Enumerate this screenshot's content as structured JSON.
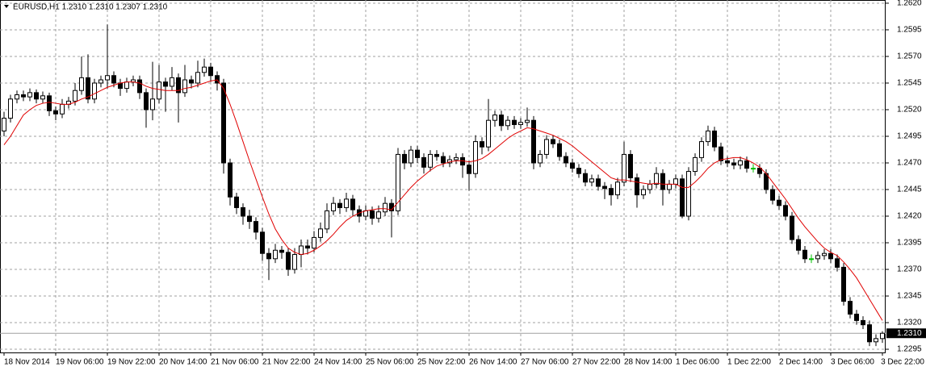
{
  "chart_data": {
    "type": "candlestick",
    "header": "EURUSD,H1  1.2310 1.2310 1.2307 1.2310",
    "ylim": [
      1.2292,
      1.2623
    ],
    "yticks": [
      {
        "value": 1.262,
        "label": "1.2620"
      },
      1.2595,
      {
        "value": 1.257,
        "label": "1.2570"
      },
      1.2545,
      {
        "value": 1.252,
        "label": "1.2520"
      },
      1.2495,
      {
        "value": 1.247,
        "label": "1.2470"
      },
      1.2445,
      {
        "value": 1.242,
        "label": "1.2420"
      },
      1.2395,
      {
        "value": 1.237,
        "label": "1.2370"
      },
      1.2345,
      {
        "value": 1.232,
        "label": "1.2320"
      },
      1.2295
    ],
    "grid": true,
    "last_price": {
      "value": 1.231,
      "label": "1.2310"
    },
    "colors": {
      "bull": "#ffffff",
      "bear": "#000000",
      "outline": "#000000",
      "doji": "#00c000",
      "ma": "#e00000",
      "last_price": "#a0a0a0"
    },
    "categories": [
      "18 Nov 2014",
      null,
      null,
      null,
      null,
      null,
      null,
      null,
      "19 Nov 06:00",
      null,
      null,
      null,
      null,
      null,
      null,
      null,
      "19 Nov 22:00",
      null,
      null,
      null,
      null,
      null,
      null,
      null,
      "20 Nov 14:00",
      null,
      null,
      null,
      null,
      null,
      null,
      null,
      "21 Nov 06:00",
      null,
      null,
      null,
      null,
      null,
      null,
      null,
      "21 Nov 22:00",
      null,
      null,
      null,
      null,
      null,
      null,
      null,
      "24 Nov 14:00",
      null,
      null,
      null,
      null,
      null,
      null,
      null,
      "25 Nov 06:00",
      null,
      null,
      null,
      null,
      null,
      null,
      null,
      "25 Nov 22:00",
      null,
      null,
      null,
      null,
      null,
      null,
      null,
      "26 Nov 14:00",
      null,
      null,
      null,
      null,
      null,
      null,
      null,
      "27 Nov 06:00",
      null,
      null,
      null,
      null,
      null,
      null,
      null,
      "27 Nov 22:00",
      null,
      null,
      null,
      null,
      null,
      null,
      null,
      "28 Nov 14:00",
      null,
      null,
      null,
      null,
      null,
      null,
      null,
      "1 Dec 06:00",
      null,
      null,
      null,
      null,
      null,
      null,
      null,
      "1 Dec 22:00",
      null,
      null,
      null,
      null,
      null,
      null,
      null,
      "2 Dec 14:00",
      null,
      null,
      null,
      null,
      null,
      null,
      null,
      "3 Dec 06:00",
      null,
      null,
      null,
      null,
      null,
      null,
      null,
      "3 Dec 22:00"
    ],
    "ohlc": [
      [
        1.25,
        1.2518,
        1.2495,
        1.2512
      ],
      [
        1.2512,
        1.2534,
        1.2508,
        1.253
      ],
      [
        1.253,
        1.2538,
        1.2526,
        1.2534
      ],
      [
        1.2534,
        1.2538,
        1.2528,
        1.2532
      ],
      [
        1.2532,
        1.254,
        1.2528,
        1.2536
      ],
      [
        1.2536,
        1.2539,
        1.2526,
        1.253
      ],
      [
        1.253,
        1.2537,
        1.2526,
        1.2533
      ],
      [
        1.2533,
        1.2536,
        1.2514,
        1.2519
      ],
      [
        1.2519,
        1.2523,
        1.251,
        1.2516
      ],
      [
        1.2516,
        1.253,
        1.2512,
        1.2525
      ],
      [
        1.2525,
        1.2532,
        1.2521,
        1.2528
      ],
      [
        1.2528,
        1.2545,
        1.2524,
        1.2538
      ],
      [
        1.2538,
        1.257,
        1.2534,
        1.255
      ],
      [
        1.255,
        1.2572,
        1.2526,
        1.253
      ],
      [
        1.253,
        1.2549,
        1.2526,
        1.2545
      ],
      [
        1.2545,
        1.2552,
        1.2541,
        1.2548
      ],
      [
        1.2548,
        1.26,
        1.254,
        1.2552
      ],
      [
        1.2552,
        1.2556,
        1.2541,
        1.2545
      ],
      [
        1.2545,
        1.2549,
        1.2533,
        1.254
      ],
      [
        1.254,
        1.255,
        1.2536,
        1.2546
      ],
      [
        1.2546,
        1.2552,
        1.2542,
        1.2548
      ],
      [
        1.2548,
        1.2552,
        1.253,
        1.2536
      ],
      [
        1.2536,
        1.254,
        1.2503,
        1.252
      ],
      [
        1.252,
        1.2565,
        1.251,
        1.253
      ],
      [
        1.253,
        1.2562,
        1.2526,
        1.2546
      ],
      [
        1.2546,
        1.255,
        1.2518,
        1.2542
      ],
      [
        1.2542,
        1.256,
        1.2538,
        1.255
      ],
      [
        1.255,
        1.2554,
        1.2508,
        1.2536
      ],
      [
        1.2536,
        1.2562,
        1.2532,
        1.2548
      ],
      [
        1.2548,
        1.2552,
        1.254,
        1.2545
      ],
      [
        1.2545,
        1.2566,
        1.2541,
        1.2555
      ],
      [
        1.2555,
        1.2568,
        1.2551,
        1.256
      ],
      [
        1.256,
        1.2564,
        1.2546,
        1.2552
      ],
      [
        1.2552,
        1.2556,
        1.2538,
        1.2545
      ],
      [
        1.2545,
        1.2549,
        1.246,
        1.247
      ],
      [
        1.247,
        1.2474,
        1.243,
        1.2438
      ],
      [
        1.2438,
        1.2442,
        1.2422,
        1.2428
      ],
      [
        1.2428,
        1.2432,
        1.2412,
        1.242
      ],
      [
        1.242,
        1.2426,
        1.2408,
        1.2415
      ],
      [
        1.2415,
        1.2419,
        1.2398,
        1.2405
      ],
      [
        1.2405,
        1.2409,
        1.2378,
        1.2385
      ],
      [
        1.2385,
        1.239,
        1.236,
        1.238
      ],
      [
        1.238,
        1.2394,
        1.2376,
        1.2388
      ],
      [
        1.2388,
        1.2392,
        1.238,
        1.2386
      ],
      [
        1.2386,
        1.239,
        1.2364,
        1.237
      ],
      [
        1.237,
        1.239,
        1.2366,
        1.2384
      ],
      [
        1.2384,
        1.2398,
        1.2372,
        1.2392
      ],
      [
        1.2392,
        1.2398,
        1.2384,
        1.239
      ],
      [
        1.239,
        1.2406,
        1.2386,
        1.24
      ],
      [
        1.24,
        1.2414,
        1.2396,
        1.2408
      ],
      [
        1.2408,
        1.2432,
        1.2404,
        1.2425
      ],
      [
        1.2425,
        1.2438,
        1.2421,
        1.2432
      ],
      [
        1.2432,
        1.2436,
        1.2422,
        1.2428
      ],
      [
        1.2428,
        1.2442,
        1.2424,
        1.2436
      ],
      [
        1.2436,
        1.244,
        1.242,
        1.2426
      ],
      [
        1.2426,
        1.243,
        1.2414,
        1.242
      ],
      [
        1.242,
        1.243,
        1.2416,
        1.2425
      ],
      [
        1.2425,
        1.2429,
        1.2412,
        1.2418
      ],
      [
        1.2418,
        1.243,
        1.2414,
        1.2424
      ],
      [
        1.2424,
        1.2438,
        1.242,
        1.2432
      ],
      [
        1.2432,
        1.2436,
        1.24,
        1.2425
      ],
      [
        1.2425,
        1.2484,
        1.2421,
        1.2478
      ],
      [
        1.2478,
        1.2482,
        1.2464,
        1.247
      ],
      [
        1.247,
        1.2486,
        1.2466,
        1.2482
      ],
      [
        1.2482,
        1.2486,
        1.247,
        1.2475
      ],
      [
        1.2475,
        1.2479,
        1.246,
        1.2466
      ],
      [
        1.2466,
        1.2482,
        1.2462,
        1.2478
      ],
      [
        1.2478,
        1.2482,
        1.2472,
        1.2476
      ],
      [
        1.2476,
        1.248,
        1.2466,
        1.247
      ],
      [
        1.247,
        1.2477,
        1.2466,
        1.2473
      ],
      [
        1.2473,
        1.2479,
        1.2469,
        1.2475
      ],
      [
        1.2475,
        1.2479,
        1.2456,
        1.2468
      ],
      [
        1.2468,
        1.2472,
        1.2444,
        1.246
      ],
      [
        1.246,
        1.2496,
        1.2456,
        1.249
      ],
      [
        1.249,
        1.2494,
        1.2478,
        1.2485
      ],
      [
        1.2485,
        1.253,
        1.2481,
        1.251
      ],
      [
        1.251,
        1.2519,
        1.2504,
        1.2515
      ],
      [
        1.2515,
        1.2519,
        1.25,
        1.2505
      ],
      [
        1.2505,
        1.2514,
        1.2501,
        1.251
      ],
      [
        1.251,
        1.2514,
        1.2502,
        1.2506
      ],
      [
        1.2506,
        1.2512,
        1.2502,
        1.2508
      ],
      [
        1.2508,
        1.2522,
        1.2504,
        1.251
      ],
      [
        1.251,
        1.2514,
        1.2464,
        1.247
      ],
      [
        1.247,
        1.2482,
        1.2466,
        1.2478
      ],
      [
        1.2478,
        1.2496,
        1.2474,
        1.2492
      ],
      [
        1.2492,
        1.2496,
        1.2484,
        1.2488
      ],
      [
        1.2488,
        1.2492,
        1.2472,
        1.2476
      ],
      [
        1.2476,
        1.248,
        1.2466,
        1.247
      ],
      [
        1.247,
        1.2474,
        1.2461,
        1.2465
      ],
      [
        1.2465,
        1.2469,
        1.2456,
        1.246
      ],
      [
        1.246,
        1.2464,
        1.2448,
        1.2452
      ],
      [
        1.2452,
        1.2459,
        1.2448,
        1.2455
      ],
      [
        1.2455,
        1.2459,
        1.2444,
        1.2448
      ],
      [
        1.2448,
        1.2452,
        1.2436,
        1.2446
      ],
      [
        1.2446,
        1.245,
        1.243,
        1.244
      ],
      [
        1.244,
        1.2456,
        1.2436,
        1.2452
      ],
      [
        1.2452,
        1.249,
        1.2448,
        1.2478
      ],
      [
        1.2478,
        1.2482,
        1.2452,
        1.2456
      ],
      [
        1.2456,
        1.246,
        1.2428,
        1.244
      ],
      [
        1.244,
        1.2449,
        1.2436,
        1.2445
      ],
      [
        1.2445,
        1.2454,
        1.2441,
        1.245
      ],
      [
        1.245,
        1.2466,
        1.2446,
        1.246
      ],
      [
        1.246,
        1.2464,
        1.243,
        1.2445
      ],
      [
        1.2445,
        1.2454,
        1.2441,
        1.245
      ],
      [
        1.245,
        1.2459,
        1.2446,
        1.2455
      ],
      [
        1.2455,
        1.2459,
        1.2418,
        1.242
      ],
      [
        1.242,
        1.2466,
        1.2416,
        1.2462
      ],
      [
        1.2462,
        1.2479,
        1.2458,
        1.2475
      ],
      [
        1.2475,
        1.2494,
        1.2471,
        1.249
      ],
      [
        1.249,
        1.2505,
        1.2486,
        1.25
      ],
      [
        1.25,
        1.2504,
        1.2481,
        1.2485
      ],
      [
        1.2485,
        1.2489,
        1.2468,
        1.2472
      ],
      [
        1.2472,
        1.2476,
        1.2466,
        1.247
      ],
      [
        1.247,
        1.2474,
        1.2464,
        1.2468
      ],
      [
        1.2468,
        1.2476,
        1.2464,
        1.2472
      ],
      [
        1.2472,
        1.2476,
        1.2461,
        1.2465
      ],
      [
        1.2465,
        1.2469,
        1.2461,
        1.2465
      ],
      [
        1.2465,
        1.2469,
        1.2456,
        1.246
      ],
      [
        1.246,
        1.2464,
        1.2441,
        1.2445
      ],
      [
        1.2445,
        1.2449,
        1.2431,
        1.2435
      ],
      [
        1.2435,
        1.2439,
        1.2426,
        1.243
      ],
      [
        1.243,
        1.2434,
        1.2416,
        1.242
      ],
      [
        1.242,
        1.2424,
        1.2394,
        1.2398
      ],
      [
        1.2398,
        1.2402,
        1.2384,
        1.2388
      ],
      [
        1.2388,
        1.2392,
        1.2376,
        1.238
      ],
      [
        1.238,
        1.2384,
        1.2376,
        1.238
      ],
      [
        1.238,
        1.2387,
        1.2376,
        1.2383
      ],
      [
        1.2383,
        1.2389,
        1.2379,
        1.2385
      ],
      [
        1.2385,
        1.2389,
        1.2376,
        1.238
      ],
      [
        1.238,
        1.2384,
        1.2368,
        1.2372
      ],
      [
        1.2372,
        1.2376,
        1.2336,
        1.234
      ],
      [
        1.234,
        1.2344,
        1.2324,
        1.2328
      ],
      [
        1.2328,
        1.2332,
        1.2318,
        1.2322
      ],
      [
        1.2322,
        1.2326,
        1.2314,
        1.2318
      ],
      [
        1.2318,
        1.2322,
        1.2298,
        1.2302
      ],
      [
        1.2302,
        1.2309,
        1.2298,
        1.2305
      ],
      [
        1.2305,
        1.2312,
        1.2301,
        1.231
      ]
    ],
    "ma": [
      1.2487,
      1.2495,
      1.2505,
      1.2515,
      1.252,
      1.2524,
      1.2526,
      1.2527,
      1.2526,
      1.2525,
      1.2525,
      1.2527,
      1.253,
      1.2532,
      1.2535,
      1.2538,
      1.2541,
      1.2543,
      1.2545,
      1.2546,
      1.2546,
      1.2545,
      1.2542,
      1.254,
      1.2539,
      1.2538,
      1.2538,
      1.2538,
      1.254,
      1.2541,
      1.2543,
      1.2545,
      1.2547,
      1.2548,
      1.254,
      1.2525,
      1.2508,
      1.249,
      1.2472,
      1.2455,
      1.2438,
      1.2422,
      1.2408,
      1.2398,
      1.239,
      1.2386,
      1.2384,
      1.2385,
      1.2388,
      1.2392,
      1.2397,
      1.2403,
      1.241,
      1.2416,
      1.242,
      1.2423,
      1.2425,
      1.2426,
      1.2427,
      1.2427,
      1.2426,
      1.2433,
      1.244,
      1.2447,
      1.2453,
      1.2458,
      1.2463,
      1.2467,
      1.2469,
      1.2471,
      1.2472,
      1.2472,
      1.2471,
      1.2472,
      1.2474,
      1.2478,
      1.2483,
      1.2488,
      1.2493,
      1.2497,
      1.25,
      1.2503,
      1.2502,
      1.25,
      1.2498,
      1.2496,
      1.2493,
      1.249,
      1.2486,
      1.2481,
      1.2476,
      1.2471,
      1.2466,
      1.2461,
      1.2456,
      1.2454,
      1.2454,
      1.2453,
      1.2452,
      1.2451,
      1.245,
      1.2451,
      1.245,
      1.245,
      1.245,
      1.2447,
      1.2447,
      1.2452,
      1.2458,
      1.2465,
      1.247,
      1.2473,
      1.2474,
      1.2475,
      1.2475,
      1.2473,
      1.247,
      1.2466,
      1.246,
      1.2452,
      1.2444,
      1.2436,
      1.2427,
      1.2418,
      1.241,
      1.2403,
      1.2396,
      1.239,
      1.2386,
      1.2383,
      1.2377,
      1.237,
      1.2362,
      1.2352,
      1.2342,
      1.2332,
      1.2322
    ]
  }
}
